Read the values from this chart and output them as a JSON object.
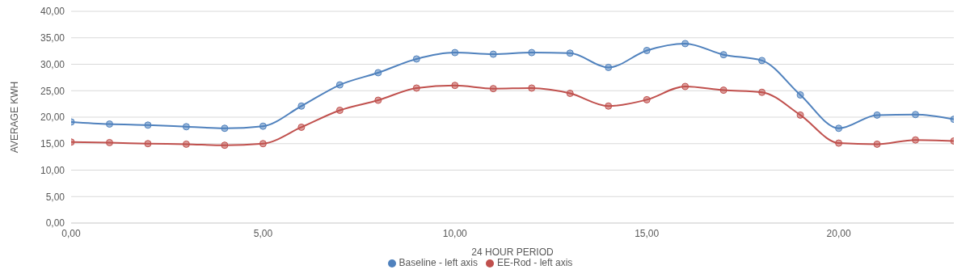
{
  "chart_data": {
    "type": "line",
    "xlabel": "24 HOUR PERIOD",
    "ylabel": "AVERAGE KWH",
    "x": [
      0,
      1,
      2,
      3,
      4,
      5,
      6,
      7,
      8,
      9,
      10,
      11,
      12,
      13,
      14,
      15,
      16,
      17,
      18,
      19,
      20,
      21,
      22,
      23
    ],
    "series": [
      {
        "name": "Baseline - left axis",
        "color": "#4f81bd",
        "values": [
          19.1,
          18.7,
          18.5,
          18.2,
          17.9,
          18.3,
          22.1,
          26.1,
          28.4,
          31.0,
          32.2,
          31.9,
          32.2,
          32.1,
          29.4,
          32.6,
          33.9,
          31.8,
          30.7,
          24.2,
          17.9,
          20.4,
          20.5,
          19.6
        ]
      },
      {
        "name": "EE-Rod - left axis",
        "color": "#c0504d",
        "values": [
          15.3,
          15.2,
          15.0,
          14.9,
          14.7,
          15.0,
          18.1,
          21.3,
          23.2,
          25.5,
          26.0,
          25.4,
          25.5,
          24.5,
          22.1,
          23.3,
          25.8,
          25.1,
          24.7,
          20.4,
          15.1,
          14.9,
          15.7,
          15.5
        ]
      }
    ],
    "xlim": [
      0,
      23
    ],
    "xticks": [
      {
        "value": 0,
        "label": "0,00"
      },
      {
        "value": 5,
        "label": "5,00"
      },
      {
        "value": 10,
        "label": "10,00"
      },
      {
        "value": 15,
        "label": "15,00"
      },
      {
        "value": 20,
        "label": "20,00"
      }
    ],
    "ylim": [
      0,
      40
    ],
    "yticks": [
      {
        "value": 0,
        "label": "0,00"
      },
      {
        "value": 5,
        "label": "5,00"
      },
      {
        "value": 10,
        "label": "10,00"
      },
      {
        "value": 15,
        "label": "15,00"
      },
      {
        "value": 20,
        "label": "20,00"
      },
      {
        "value": 25,
        "label": "25,00"
      },
      {
        "value": 30,
        "label": "30,00"
      },
      {
        "value": 35,
        "label": "35,00"
      },
      {
        "value": 40,
        "label": "40,00"
      }
    ],
    "grid": "y",
    "legend": "bottom",
    "marker": "circle",
    "line_style": "solid"
  }
}
